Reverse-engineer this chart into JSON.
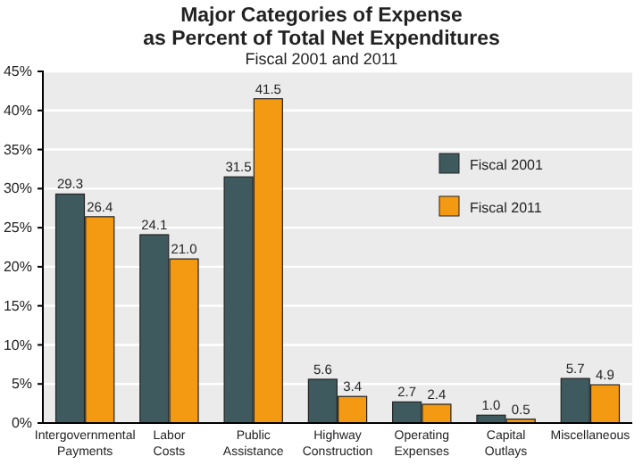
{
  "chart_data": {
    "type": "bar",
    "title": "Major Categories of Expense as Percent of Total Net Expenditures",
    "subtitle": "Fiscal 2001 and 2011",
    "categories": [
      "Intergovernmental Payments",
      "Labor Costs",
      "Public Assistance",
      "Highway Construction",
      "Operating Expenses",
      "Capital Outlays",
      "Miscellaneous"
    ],
    "series": [
      {
        "name": "Fiscal 2001",
        "color": "#3e5a5e",
        "values": [
          29.3,
          24.1,
          31.5,
          5.6,
          2.7,
          1.0,
          5.7
        ],
        "value_labels": [
          "29.3",
          "24.1",
          "31.5",
          "5.6",
          "2.7",
          "1.0",
          "5.7"
        ]
      },
      {
        "name": "Fiscal 2011",
        "color": "#f39a12",
        "values": [
          26.4,
          21.0,
          41.5,
          3.4,
          2.4,
          0.5,
          4.9
        ],
        "value_labels": [
          "26.4",
          "21.0",
          "41.5",
          "3.4",
          "2.4",
          "0.5",
          "4.9"
        ]
      }
    ],
    "ylim": [
      0,
      45
    ],
    "yticks": [
      {
        "value": 0,
        "label": "0%"
      },
      {
        "value": 5,
        "label": "5%"
      },
      {
        "value": 10,
        "label": "10%"
      },
      {
        "value": 15,
        "label": "15%"
      },
      {
        "value": 20,
        "label": "20%"
      },
      {
        "value": 25,
        "label": "25%"
      },
      {
        "value": 30,
        "label": "30%"
      },
      {
        "value": 35,
        "label": "35%"
      },
      {
        "value": 40,
        "label": "40%"
      },
      {
        "value": 45,
        "label": "45%"
      }
    ],
    "grid": "y",
    "legend": "top right"
  }
}
